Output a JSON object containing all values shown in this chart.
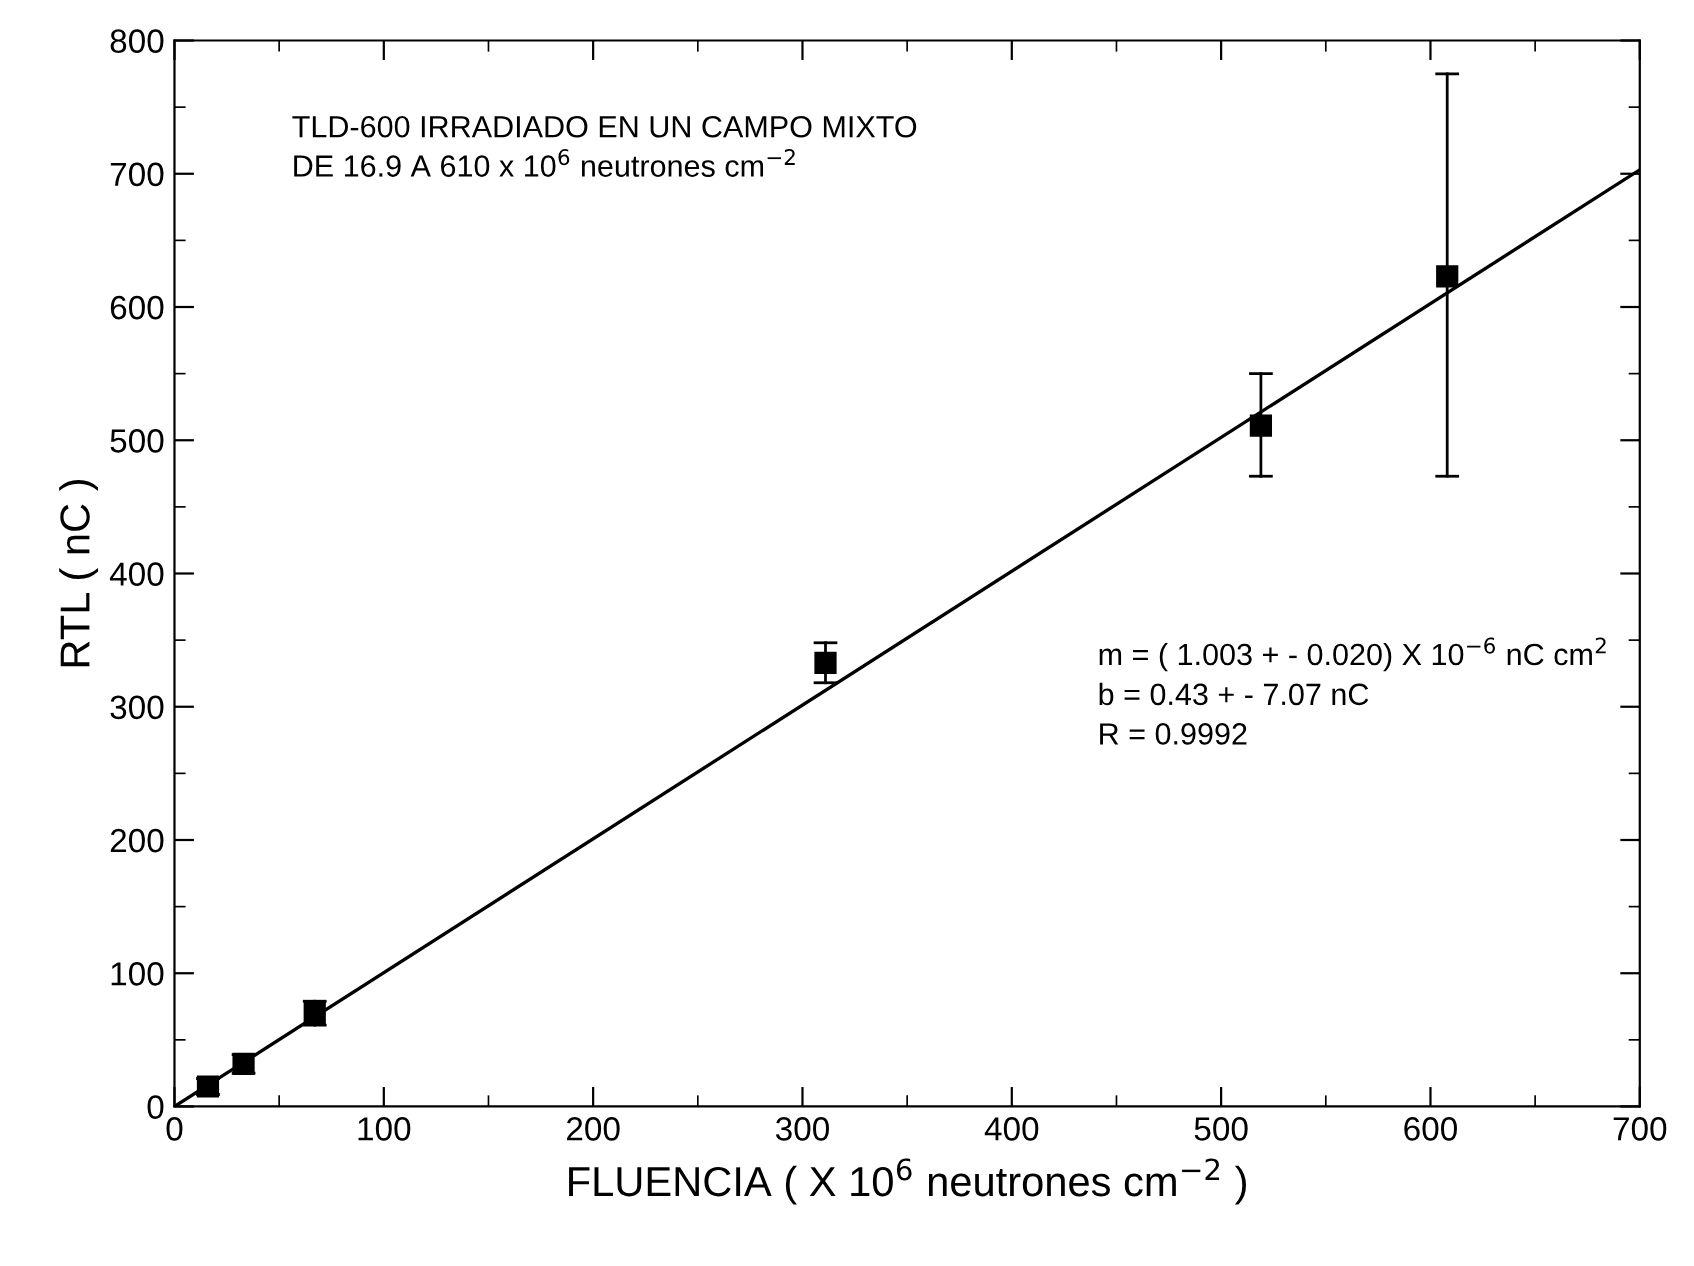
{
  "chart_data": {
    "type": "scatter",
    "xlabel": "FLUENCIA ( X 10$^{6}$ neutrones cm$^{−2}$ )",
    "ylabel": "RTL ( nC )",
    "series": [
      {
        "color": "#000000",
        "marker": "square",
        "x": [
          16,
          33,
          67,
          311,
          519,
          608
        ],
        "values": [
          15,
          32,
          70,
          333,
          511,
          623
        ],
        "errors": [
          6,
          7,
          9,
          15,
          [
            473,
            550
          ],
          [
            473,
            775
          ]
        ]
      },
      {
        "type": "line",
        "color": "#000000",
        "marker": "none",
        "line_style": "solid",
        "x": [
          0,
          700
        ],
        "values": [
          0,
          703
        ]
      }
    ],
    "annotations": [
      "TLD-600 IRRADIADO EN UN CAMPO MIXTO\nDE 16.9 A 610 x 10$^{6}$ neutrones cm$^{−2}$",
      "m = ( 1.003 + - 0.020) X 10$^{−6}$ nC cm$^{2}$\nb = 0.43 + - 7.07 nC\nR = 0.9992"
    ],
    "xlim": [
      0,
      700
    ],
    "ylim": [
      0,
      800
    ],
    "xticks": [
      0,
      100,
      200,
      300,
      400,
      500,
      600,
      700
    ],
    "yticks": [
      0,
      100,
      200,
      300,
      400,
      500,
      600,
      700,
      800
    ],
    "grid": false,
    "legend": false
  }
}
